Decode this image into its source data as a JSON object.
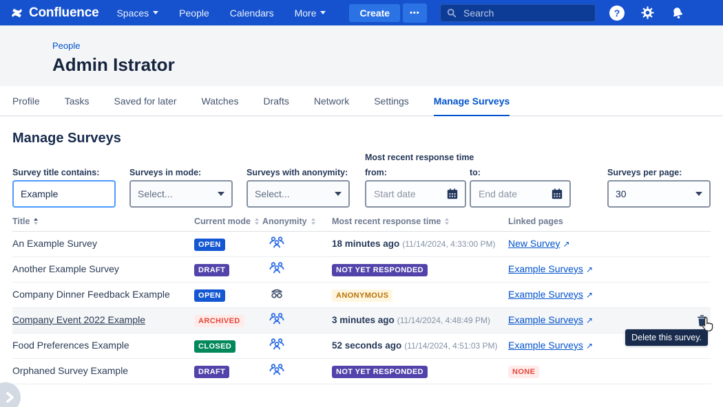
{
  "colors": {
    "nav_bg": "#1652CD",
    "nav_button_bg": "#2B73E5",
    "search_bg": "#0C3C96",
    "accent_blue": "#0052CC",
    "header_bg": "#F4F5F7",
    "tooltip_bg": "#182B4D",
    "badge_open_bg": "#1457D3",
    "badge_draft_bg": "#5243AA",
    "badge_closed_bg": "#00875A",
    "badge_archived_bg": "#FFECEA",
    "badge_archived_text": "#E5483C",
    "badge_anonymous_bg": "#FFF6DF",
    "badge_anonymous_text": "#B97309",
    "badge_none_bg": "#FFECEA",
    "badge_none_text": "#E5483C"
  },
  "icons": {
    "help_glyph": "?",
    "external_arrow": "↗"
  },
  "nav": {
    "brand": "Confluence",
    "items": [
      {
        "label": "Spaces",
        "dropdown": true
      },
      {
        "label": "People",
        "dropdown": false
      },
      {
        "label": "Calendars",
        "dropdown": false
      },
      {
        "label": "More",
        "dropdown": true
      }
    ],
    "create_label": "Create",
    "overflow_label": "•••",
    "search_placeholder": "Search"
  },
  "profile_header": {
    "breadcrumb": "People",
    "title": "Admin Istrator"
  },
  "tabs": {
    "items": [
      "Profile",
      "Tasks",
      "Saved for later",
      "Watches",
      "Drafts",
      "Network",
      "Settings",
      "Manage Surveys"
    ],
    "active": "Manage Surveys"
  },
  "page": {
    "title": "Manage Surveys"
  },
  "filters": {
    "title_contains": {
      "label": "Survey title contains:",
      "value": "Example"
    },
    "mode": {
      "label": "Surveys in mode:",
      "value": "Select..."
    },
    "anonymity": {
      "label": "Surveys with anonymity:",
      "value": "Select..."
    },
    "response_time": {
      "group_label": "Most recent response time",
      "from_label": "from:",
      "from_placeholder": "Start date",
      "to_label": "to:",
      "to_placeholder": "End date"
    },
    "per_page": {
      "label": "Surveys per page:",
      "value": "30"
    }
  },
  "table": {
    "columns": [
      {
        "label": "Title",
        "sort": "asc"
      },
      {
        "label": "Current mode",
        "sort": "both"
      },
      {
        "label": "Anonymity",
        "sort": "both"
      },
      {
        "label": "Most recent response time",
        "sort": "both"
      },
      {
        "label": "Linked pages",
        "sort": "none"
      }
    ],
    "rows": [
      {
        "title": "An Example Survey",
        "hovered": false,
        "mode": {
          "label": "OPEN",
          "style": "open"
        },
        "anonymity": "group",
        "response": {
          "type": "time",
          "relative": "18 minutes ago",
          "absolute": "(11/14/2024, 4:33:00 PM)"
        },
        "linked": {
          "type": "link",
          "label": "New Survey"
        },
        "show_delete": false
      },
      {
        "title": "Another Example Survey",
        "hovered": false,
        "mode": {
          "label": "DRAFT",
          "style": "draft"
        },
        "anonymity": "group",
        "response": {
          "type": "badge",
          "label": "NOT YET RESPONDED",
          "style": "draft"
        },
        "linked": {
          "type": "link",
          "label": "Example Surveys"
        },
        "show_delete": false
      },
      {
        "title": "Company Dinner Feedback Example",
        "hovered": false,
        "mode": {
          "label": "OPEN",
          "style": "open"
        },
        "anonymity": "incognito",
        "response": {
          "type": "badge",
          "label": "ANONYMOUS",
          "style": "anonymous"
        },
        "linked": {
          "type": "link",
          "label": "Example Surveys"
        },
        "show_delete": false
      },
      {
        "title": "Company Event 2022 Example",
        "hovered": true,
        "mode": {
          "label": "ARCHIVED",
          "style": "archived"
        },
        "anonymity": "group",
        "response": {
          "type": "time",
          "relative": "3 minutes ago",
          "absolute": "(11/14/2024, 4:48:49 PM)"
        },
        "linked": {
          "type": "link",
          "label": "Example Surveys"
        },
        "show_delete": true
      },
      {
        "title": "Food Preferences Example",
        "hovered": false,
        "mode": {
          "label": "CLOSED",
          "style": "closed"
        },
        "anonymity": "group",
        "response": {
          "type": "time",
          "relative": "52 seconds ago",
          "absolute": "(11/14/2024, 4:51:03 PM)"
        },
        "linked": {
          "type": "link",
          "label": "Example Surveys"
        },
        "show_delete": false
      },
      {
        "title": "Orphaned Survey Example",
        "hovered": false,
        "mode": {
          "label": "DRAFT",
          "style": "draft"
        },
        "anonymity": "group",
        "response": {
          "type": "badge",
          "label": "NOT YET RESPONDED",
          "style": "draft"
        },
        "linked": {
          "type": "badge",
          "label": "NONE",
          "style": "none"
        },
        "show_delete": false
      }
    ]
  },
  "tooltip": {
    "text": "Delete this survey."
  }
}
